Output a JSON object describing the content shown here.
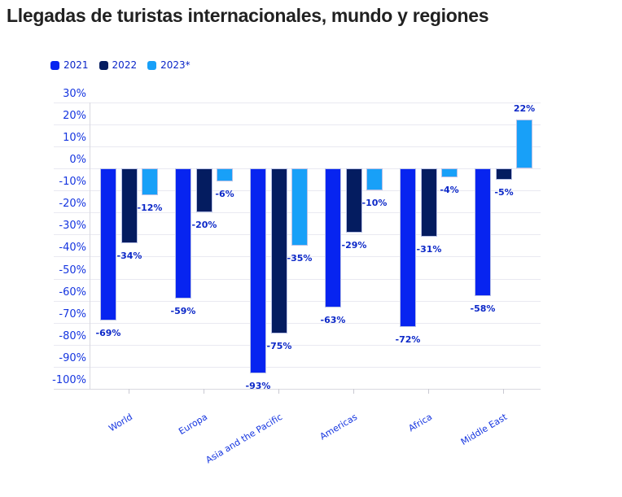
{
  "title": "Llegadas de turistas internacionales, mundo y regiones",
  "legend": {
    "items": [
      {
        "label": "2021",
        "color": "#0724f0"
      },
      {
        "label": "2022",
        "color": "#041c60"
      },
      {
        "label": "2023*",
        "color": "#18a0f8"
      }
    ]
  },
  "chart_data": {
    "type": "bar",
    "title": "Llegadas de turistas internacionales, mundo y regiones",
    "categories": [
      "World",
      "Europa",
      "Asia and the Pacific",
      "Americas",
      "Africa",
      "Middle East"
    ],
    "series": [
      {
        "name": "2021",
        "color": "#0724f0",
        "values": [
          -69,
          -59,
          -93,
          -63,
          -72,
          -58
        ]
      },
      {
        "name": "2022",
        "color": "#041c60",
        "values": [
          -34,
          -20,
          -75,
          -29,
          -31,
          -5
        ]
      },
      {
        "name": "2023*",
        "color": "#18a0f8",
        "values": [
          -12,
          -6,
          -35,
          -10,
          -4,
          22
        ]
      }
    ],
    "value_suffix": "%",
    "ylim": [
      -100,
      30
    ],
    "y_tick_step": 10,
    "y_tick_labels": [
      "30%",
      "20%",
      "10%",
      "0%",
      "-10%",
      "-20%",
      "-30%",
      "-40%",
      "-50%",
      "-60%",
      "-70%",
      "-80%",
      "-90%",
      "-100%"
    ],
    "grid": true,
    "data_labels": true,
    "legend_position": "top-left",
    "xlabel": "",
    "ylabel": ""
  },
  "colors": {
    "title": "#212121",
    "background": "#ffffff",
    "axis_label": "#1535e0",
    "category_label": "#1535e0",
    "data_label": "#0c28c8",
    "legend_label": "#0a25c8",
    "grid": "#e9e9f1",
    "axis_line": "#d8d8e0",
    "tick": "#c9c9d2",
    "bar_border": "#b9c1e6"
  }
}
